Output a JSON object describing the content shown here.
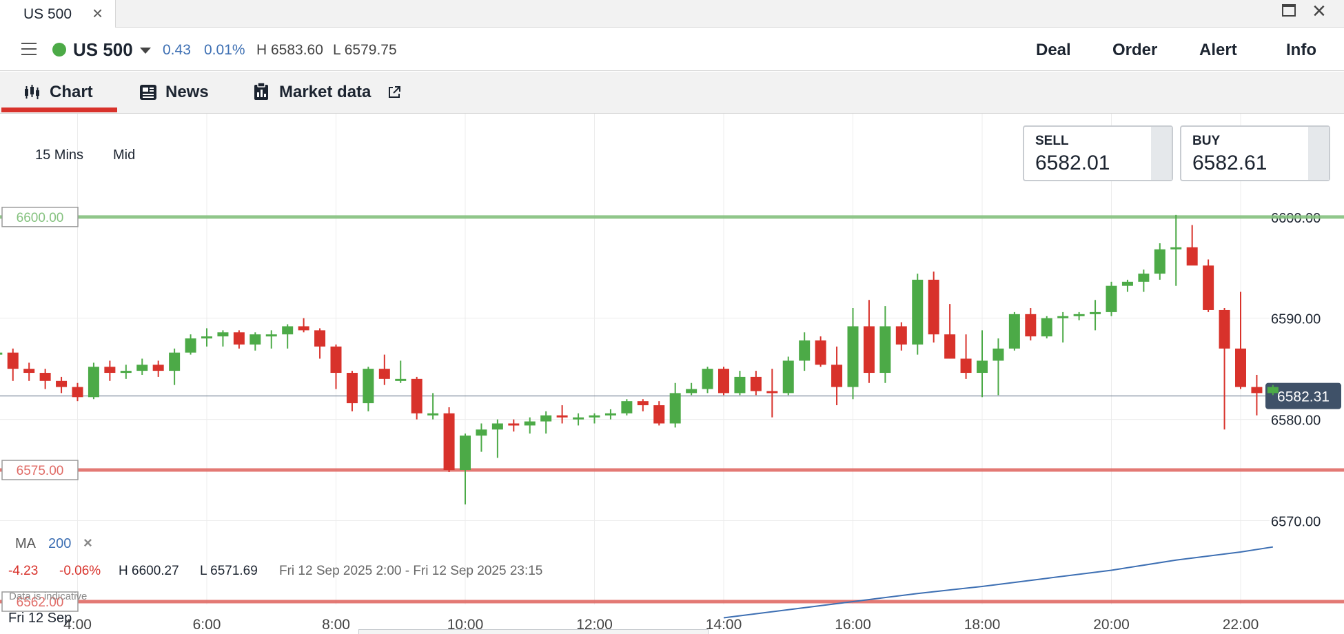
{
  "window": {
    "tab_title": "US 500",
    "tab_close_icon": "close-icon",
    "maximize_icon": "maximize-icon",
    "close_icon": "close-icon"
  },
  "instrument": {
    "name": "US 500",
    "status_color": "#4caa47",
    "change": "0.43",
    "change_pct": "0.01%",
    "high": "H 6583.60",
    "low": "L 6579.75",
    "actions": [
      "Deal",
      "Order",
      "Alert",
      "Info"
    ]
  },
  "subtabs": [
    {
      "label": "Chart",
      "icon": "candlestick-icon",
      "active": true
    },
    {
      "label": "News",
      "icon": "newspaper-icon",
      "active": false
    },
    {
      "label": "Market data",
      "icon": "clipboard-icon",
      "trailing_icon": "external-link-icon",
      "active": false
    }
  ],
  "controls": {
    "interval": "15 Mins",
    "price_type": "Mid"
  },
  "quote": {
    "sell_label": "SELL",
    "sell_value": "6582.01",
    "buy_label": "BUY",
    "buy_value": "6582.61"
  },
  "indicator": {
    "name": "MA",
    "period": "200",
    "remove_icon": "close-icon"
  },
  "summary": {
    "change": "-4.23",
    "change_pct": "-0.06%",
    "high": "H 6600.27",
    "low": "L 6571.69",
    "range": "Fri 12 Sep 2025 2:00 - Fri 12 Sep 2025 23:15"
  },
  "disclaimer": "Data is indicative",
  "date_label": "Fri 12 Sep",
  "colors": {
    "up": "#4caa47",
    "down": "#d8322b",
    "upper_line": "#85c27f",
    "lower_line": "#e06b66",
    "ma_line": "#3d6fb3",
    "current_price_bg": "#3f5168"
  },
  "chart_data": {
    "type": "candlestick",
    "x_range": [
      2.8,
      23.6
    ],
    "y_range": [
      6558.8,
      6610.2
    ],
    "xticks": [
      4,
      6,
      8,
      10,
      12,
      14,
      16,
      18,
      20,
      22
    ],
    "xtick_labels": [
      "4:00",
      "6:00",
      "8:00",
      "10:00",
      "12:00",
      "14:00",
      "16:00",
      "18:00",
      "20:00",
      "22:00"
    ],
    "yticks": [
      6570,
      6580,
      6590,
      6600
    ],
    "ytick_labels": [
      "6570.00",
      "6580.00",
      "6590.00",
      "6600.00"
    ],
    "current_price": 6582.31,
    "current_price_label": "6582.31",
    "levels": [
      {
        "value": 6600,
        "label": "6600.00",
        "color": "#85c27f"
      },
      {
        "value": 6575,
        "label": "6575.00",
        "color": "#e06b66"
      },
      {
        "value": 6562,
        "label": "6562.00",
        "color": "#e06b66"
      }
    ],
    "candles": [
      [
        2.75,
        6586.4,
        6587.0,
        6585.6,
        6586.6
      ],
      [
        3.0,
        6586.6,
        6587.0,
        6583.8,
        6585.0
      ],
      [
        3.25,
        6585.0,
        6585.6,
        6583.8,
        6584.6
      ],
      [
        3.5,
        6584.6,
        6585.0,
        6583.0,
        6583.8
      ],
      [
        3.75,
        6583.8,
        6584.2,
        6582.6,
        6583.2
      ],
      [
        4.0,
        6583.2,
        6583.6,
        6581.8,
        6582.2
      ],
      [
        4.25,
        6582.2,
        6585.6,
        6582.0,
        6585.2
      ],
      [
        4.5,
        6585.2,
        6585.8,
        6583.8,
        6584.6
      ],
      [
        4.75,
        6584.6,
        6585.4,
        6584.0,
        6584.8
      ],
      [
        5.0,
        6584.8,
        6586.0,
        6584.4,
        6585.4
      ],
      [
        5.25,
        6585.4,
        6585.8,
        6584.2,
        6584.8
      ],
      [
        5.5,
        6584.8,
        6587.0,
        6583.4,
        6586.6
      ],
      [
        5.75,
        6586.6,
        6588.4,
        6586.4,
        6588.0
      ],
      [
        6.0,
        6588.0,
        6589.0,
        6587.2,
        6588.2
      ],
      [
        6.25,
        6588.2,
        6588.8,
        6587.2,
        6588.6
      ],
      [
        6.5,
        6588.6,
        6588.8,
        6587.0,
        6587.4
      ],
      [
        6.75,
        6587.4,
        6588.6,
        6586.8,
        6588.4
      ],
      [
        7.0,
        6588.4,
        6588.8,
        6587.0,
        6588.4
      ],
      [
        7.25,
        6588.4,
        6589.4,
        6587.0,
        6589.2
      ],
      [
        7.5,
        6589.2,
        6590.0,
        6588.6,
        6588.8
      ],
      [
        7.75,
        6588.8,
        6589.0,
        6586.0,
        6587.2
      ],
      [
        8.0,
        6587.2,
        6587.4,
        6583.0,
        6584.6
      ],
      [
        8.25,
        6584.6,
        6584.8,
        6580.8,
        6581.6
      ],
      [
        8.5,
        6581.6,
        6585.2,
        6580.8,
        6585.0
      ],
      [
        8.75,
        6585.0,
        6586.4,
        6583.4,
        6584.0
      ],
      [
        9.0,
        6584.0,
        6585.8,
        6583.6,
        6584.0
      ],
      [
        9.25,
        6584.0,
        6584.2,
        6580.0,
        6580.6
      ],
      [
        9.5,
        6580.6,
        6582.6,
        6580.0,
        6580.6
      ],
      [
        9.75,
        6580.6,
        6581.2,
        6574.8,
        6575.0
      ],
      [
        10.0,
        6575.0,
        6578.6,
        6571.6,
        6578.4
      ],
      [
        10.25,
        6578.4,
        6579.6,
        6576.8,
        6579.0
      ],
      [
        10.5,
        6579.0,
        6580.0,
        6576.2,
        6579.6
      ],
      [
        10.75,
        6579.6,
        6580.0,
        6578.8,
        6579.4
      ],
      [
        11.0,
        6579.4,
        6580.2,
        6578.6,
        6579.8
      ],
      [
        11.25,
        6579.8,
        6580.8,
        6578.6,
        6580.4
      ],
      [
        11.5,
        6580.4,
        6581.4,
        6579.6,
        6580.2
      ],
      [
        11.75,
        6580.2,
        6580.6,
        6579.4,
        6580.2
      ],
      [
        12.0,
        6580.2,
        6580.6,
        6579.6,
        6580.4
      ],
      [
        12.25,
        6580.4,
        6581.0,
        6580.0,
        6580.6
      ],
      [
        12.5,
        6580.6,
        6582.0,
        6580.4,
        6581.8
      ],
      [
        12.75,
        6581.8,
        6582.0,
        6580.8,
        6581.4
      ],
      [
        13.0,
        6581.4,
        6581.8,
        6579.4,
        6579.6
      ],
      [
        13.25,
        6579.6,
        6583.6,
        6579.2,
        6582.6
      ],
      [
        13.5,
        6582.6,
        6583.6,
        6582.4,
        6583.0
      ],
      [
        13.75,
        6583.0,
        6585.2,
        6582.6,
        6585.0
      ],
      [
        14.0,
        6585.0,
        6585.2,
        6582.4,
        6582.6
      ],
      [
        14.25,
        6582.6,
        6584.8,
        6582.4,
        6584.2
      ],
      [
        14.5,
        6584.2,
        6584.8,
        6582.4,
        6582.8
      ],
      [
        14.75,
        6582.8,
        6585.0,
        6580.2,
        6582.6
      ],
      [
        15.0,
        6582.6,
        6586.2,
        6582.4,
        6585.8
      ],
      [
        15.25,
        6585.8,
        6588.6,
        6584.8,
        6587.8
      ],
      [
        15.5,
        6587.8,
        6588.2,
        6585.2,
        6585.4
      ],
      [
        15.75,
        6585.4,
        6587.2,
        6581.4,
        6583.2
      ],
      [
        16.0,
        6583.2,
        6591.0,
        6582.0,
        6589.2
      ],
      [
        16.25,
        6589.2,
        6591.8,
        6583.6,
        6584.6
      ],
      [
        16.5,
        6584.6,
        6591.2,
        6583.6,
        6589.2
      ],
      [
        16.75,
        6589.2,
        6589.6,
        6586.8,
        6587.4
      ],
      [
        17.0,
        6587.4,
        6594.4,
        6586.4,
        6593.8
      ],
      [
        17.25,
        6593.8,
        6594.6,
        6587.6,
        6588.4
      ],
      [
        17.5,
        6588.4,
        6591.4,
        6586.0,
        6586.0
      ],
      [
        17.75,
        6586.0,
        6588.4,
        6584.0,
        6584.6
      ],
      [
        18.0,
        6584.6,
        6588.8,
        6582.2,
        6585.8
      ],
      [
        18.25,
        6585.8,
        6588.0,
        6582.4,
        6587.0
      ],
      [
        18.5,
        6587.0,
        6590.6,
        6586.8,
        6590.4
      ],
      [
        18.75,
        6590.4,
        6591.0,
        6587.8,
        6588.2
      ],
      [
        19.0,
        6588.2,
        6590.2,
        6588.0,
        6590.0
      ],
      [
        19.25,
        6590.0,
        6590.6,
        6587.6,
        6590.2
      ],
      [
        19.5,
        6590.2,
        6590.6,
        6589.8,
        6590.4
      ],
      [
        19.75,
        6590.4,
        6591.8,
        6588.8,
        6590.6
      ],
      [
        20.0,
        6590.6,
        6593.6,
        6590.2,
        6593.2
      ],
      [
        20.25,
        6593.2,
        6593.8,
        6592.6,
        6593.6
      ],
      [
        20.5,
        6593.6,
        6594.8,
        6592.6,
        6594.4
      ],
      [
        20.75,
        6594.4,
        6597.4,
        6593.8,
        6596.8
      ],
      [
        21.0,
        6596.8,
        6600.2,
        6593.2,
        6597.0
      ],
      [
        21.25,
        6597.0,
        6599.2,
        6595.4,
        6595.2
      ],
      [
        21.5,
        6595.2,
        6595.8,
        6590.6,
        6590.8
      ],
      [
        21.75,
        6590.8,
        6591.0,
        6579.0,
        6587.0
      ],
      [
        22.0,
        6587.0,
        6592.6,
        6583.0,
        6583.2
      ],
      [
        22.25,
        6583.2,
        6584.4,
        6580.4,
        6582.6
      ],
      [
        22.5,
        6582.6,
        6583.4,
        6582.4,
        6583.2
      ]
    ],
    "ma_200": [
      [
        14.0,
        6560.4
      ],
      [
        15.0,
        6561.2
      ],
      [
        16.0,
        6562.0
      ],
      [
        17.0,
        6562.8
      ],
      [
        18.0,
        6563.5
      ],
      [
        19.0,
        6564.3
      ],
      [
        20.0,
        6565.1
      ],
      [
        21.0,
        6566.1
      ],
      [
        22.0,
        6566.9
      ],
      [
        22.5,
        6567.4
      ]
    ]
  }
}
